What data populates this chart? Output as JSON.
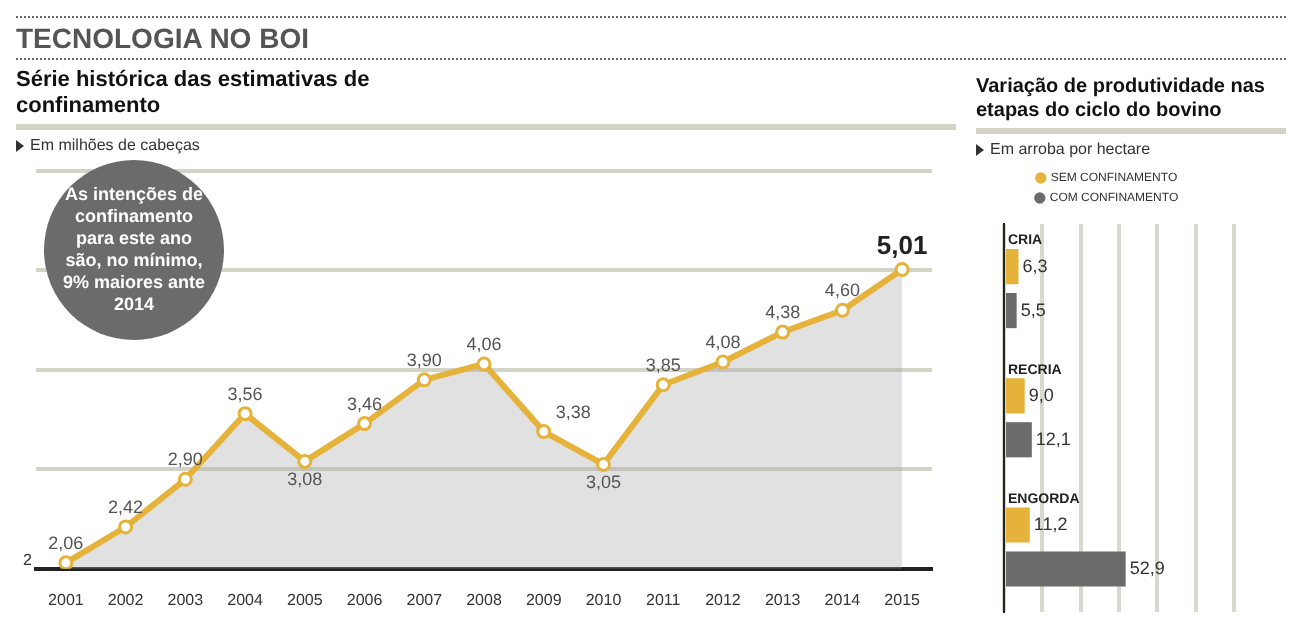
{
  "chart_data": [
    {
      "type": "area",
      "title": "TECNOLOGIA NO BOI",
      "subtitle": "Série histórica das estimativas de confinamento",
      "ylabel": "Em milhões de cabeças",
      "annotations": [
        "As intenções de confinamento para este ano são, no mínimo, 9% maiores ante 2014",
        "2"
      ],
      "categories": [
        "2001",
        "2002",
        "2003",
        "2004",
        "2005",
        "2006",
        "2007",
        "2008",
        "2009",
        "2010",
        "2011",
        "2012",
        "2013",
        "2014",
        "2015"
      ],
      "series": [
        {
          "color": "#e5b23a",
          "values": [
            2.06,
            2.42,
            2.9,
            3.56,
            3.08,
            3.46,
            3.9,
            4.06,
            3.38,
            3.05,
            3.85,
            4.08,
            4.38,
            4.6,
            5.01
          ],
          "value_labels": [
            "2,06",
            "2,42",
            "2,90",
            "3,56",
            "3,08",
            "3,46",
            "3,90",
            "4,06",
            "3,38",
            "3,05",
            "3,85",
            "4,08",
            "4,38",
            "4,60",
            "5,01"
          ]
        }
      ],
      "ylim": [
        2,
        6
      ],
      "grid": "y",
      "marker": "circle",
      "legend": false,
      "tick_labels": "x"
    },
    {
      "type": "bar",
      "orientation": "horizontal",
      "title": "Variação de produtividade nas etapas do ciclo do bovino",
      "xlabel": "Em arroba por hectare",
      "categories": [
        "CRIA",
        "RECRIA",
        "ENGORDA"
      ],
      "series": [
        {
          "name": "SEM CONFINAMENTO",
          "color": "#e5b23a",
          "values": [
            6.3,
            9.0,
            11.2
          ],
          "value_labels": [
            "6,3",
            "9,0",
            "11,2"
          ]
        },
        {
          "name": "COM CONFINAMENTO",
          "color": "#6b6b6b",
          "values": [
            5.5,
            12.1,
            52.9
          ],
          "value_labels": [
            "5,5",
            "12,1",
            "52,9"
          ]
        }
      ],
      "grid": "x",
      "legend": "top",
      "tick_labels": "y"
    }
  ]
}
